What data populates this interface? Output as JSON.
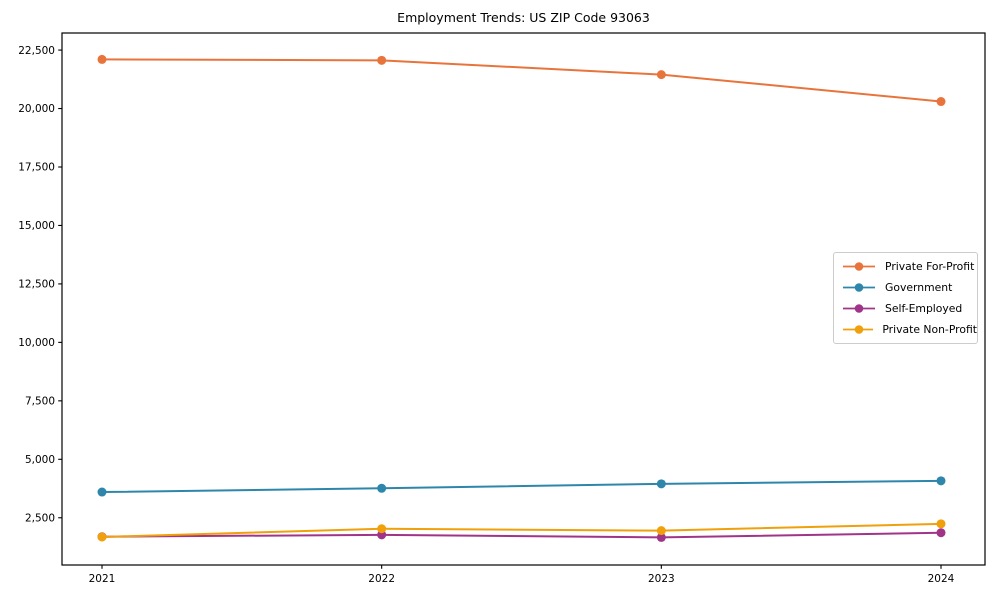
{
  "chart_data": {
    "type": "line",
    "title": "Employment Trends: US ZIP Code 93063",
    "categories": [
      "2021",
      "2022",
      "2023",
      "2024"
    ],
    "series": [
      {
        "name": "Private For-Profit",
        "color": "#e8743b",
        "values": [
          22100,
          22060,
          21450,
          20300
        ]
      },
      {
        "name": "Government",
        "color": "#2e86ab",
        "values": [
          3600,
          3760,
          3950,
          4080
        ]
      },
      {
        "name": "Self-Employed",
        "color": "#a03488",
        "values": [
          1690,
          1770,
          1660,
          1860
        ]
      },
      {
        "name": "Private Non-Profit",
        "color": "#efa00b",
        "values": [
          1680,
          2030,
          1950,
          2240
        ]
      }
    ],
    "xlabel": "",
    "ylabel": "",
    "yticks": [
      2500,
      5000,
      7500,
      10000,
      12500,
      15000,
      17500,
      20000,
      22500
    ],
    "ytick_labels": [
      "2,500",
      "5,000",
      "7,500",
      "10,000",
      "12,500",
      "15,000",
      "17,500",
      "20,000",
      "22,500"
    ],
    "ylim": [
      480,
      23230
    ],
    "grid": false,
    "legend_position": "center right",
    "marker": "circle",
    "linewidth": 2,
    "spine_color": "#000000",
    "background_color": "#ffffff"
  }
}
